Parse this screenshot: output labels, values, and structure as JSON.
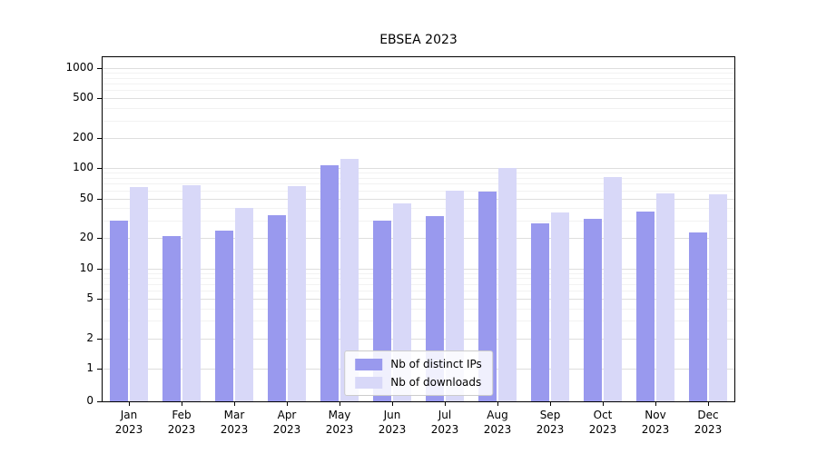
{
  "chart_data": {
    "type": "bar",
    "title": "EBSEA 2023",
    "categories": [
      "Jan 2023",
      "Feb 2023",
      "Mar 2023",
      "Apr 2023",
      "May 2023",
      "Jun 2023",
      "Jul 2023",
      "Aug 2023",
      "Sep 2023",
      "Oct 2023",
      "Nov 2023",
      "Dec 2023"
    ],
    "series": [
      {
        "name": "Nb of distinct IPs",
        "color": "#9999ee",
        "values": [
          30,
          21,
          24,
          34,
          108,
          30,
          33,
          58,
          28,
          31,
          37,
          23
        ]
      },
      {
        "name": "Nb of downloads",
        "color": "#d8d8f8",
        "values": [
          65,
          68,
          40,
          66,
          125,
          45,
          60,
          100,
          36,
          82,
          56,
          55
        ]
      }
    ],
    "xlabel": "",
    "ylabel": "",
    "yscale": "symlog",
    "yticks": [
      0,
      1,
      2,
      5,
      10,
      20,
      50,
      100,
      200,
      500,
      1000
    ],
    "ylim": [
      0,
      1300
    ],
    "grid": true,
    "legend_position": "lower center"
  }
}
